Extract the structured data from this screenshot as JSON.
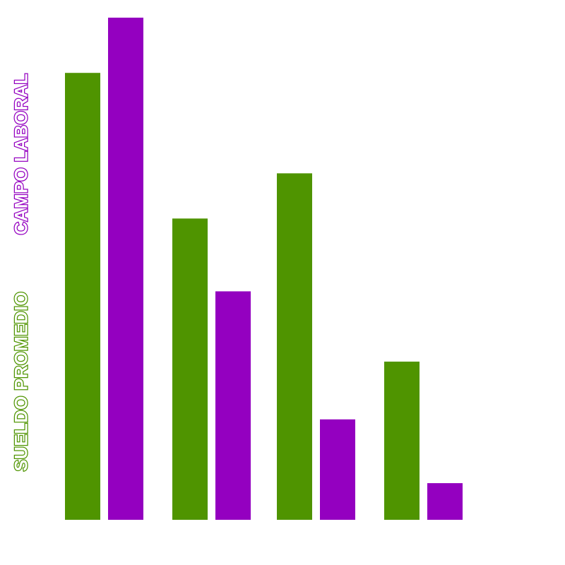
{
  "chart_data": {
    "type": "bar",
    "categories": [
      "",
      "",
      "",
      ""
    ],
    "series": [
      {
        "name": "SUELDO PROMEDIO",
        "color": "#4f9400",
        "values": [
          89,
          60,
          69,
          31.5
        ]
      },
      {
        "name": "CAMPO LABORAL",
        "color": "#9400c0",
        "values": [
          100,
          45.5,
          20,
          7.3
        ]
      }
    ],
    "title": "",
    "xlabel": "",
    "ylabel": "",
    "ylim": [
      0,
      100
    ],
    "grid": false,
    "legend": "left, vertical text"
  }
}
